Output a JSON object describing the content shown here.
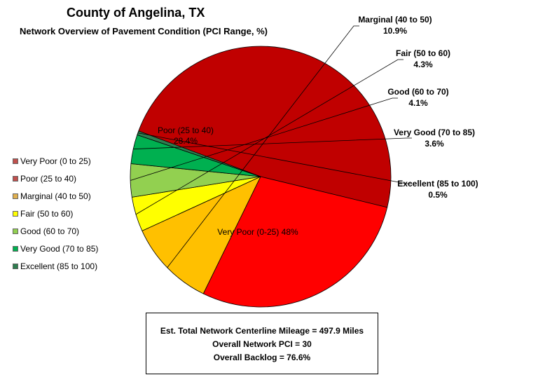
{
  "chart_data": {
    "type": "pie",
    "title": "County of Angelina, TX",
    "subtitle": "Network Overview of Pavement Condition (PCI Range, %)",
    "series": [
      {
        "name": "Very Poor (0 to 25)",
        "label": "Very Poor (0-25) 48%",
        "value": 48.0,
        "color": "#c00000"
      },
      {
        "name": "Poor (25 to 40)",
        "label": "Poor (25 to 40)",
        "value_text": "28.4%",
        "value": 28.4,
        "color": "#ff0000"
      },
      {
        "name": "Marginal (40 to 50)",
        "label": "Marginal (40 to 50)",
        "value_text": "10.9%",
        "value": 10.9,
        "color": "#ffc000"
      },
      {
        "name": "Fair (50 to 60)",
        "label": "Fair (50 to 60)",
        "value_text": "4.3%",
        "value": 4.3,
        "color": "#ffff00"
      },
      {
        "name": "Good (60 to 70)",
        "label": "Good (60 to 70)",
        "value_text": "4.1%",
        "value": 4.1,
        "color": "#92d050"
      },
      {
        "name": "Very Good (70 to 85)",
        "label": "Very Good (70 to 85)",
        "value_text": "3.6%",
        "value": 3.6,
        "color": "#00b050"
      },
      {
        "name": "Excellent (85 to 100)",
        "label": "Excellent (85 to 100)",
        "value_text": "0.5%",
        "value": 0.5,
        "color": "#2e7d4f"
      }
    ],
    "legend_placement": "left",
    "legend": [
      {
        "label": "Very Poor (0 to 25)",
        "color": "#c0504d"
      },
      {
        "label": "Poor (25 to 40)",
        "color": "#c0504d"
      },
      {
        "label": "Marginal (40 to 50)",
        "color": "#e0b050"
      },
      {
        "label": "Fair (50 to 60)",
        "color": "#ffff00"
      },
      {
        "label": "Good (60 to 70)",
        "color": "#92d050"
      },
      {
        "label": "Very Good (70 to 85)",
        "color": "#00b050"
      },
      {
        "label": "Excellent (85 to 100)",
        "color": "#2e7d4f"
      }
    ]
  },
  "summary": {
    "mileage": "Est. Total Network Centerline Mileage = 497.9 Miles",
    "pci": "Overall Network PCI = 30",
    "backlog": "Overall Backlog = 76.6%"
  }
}
